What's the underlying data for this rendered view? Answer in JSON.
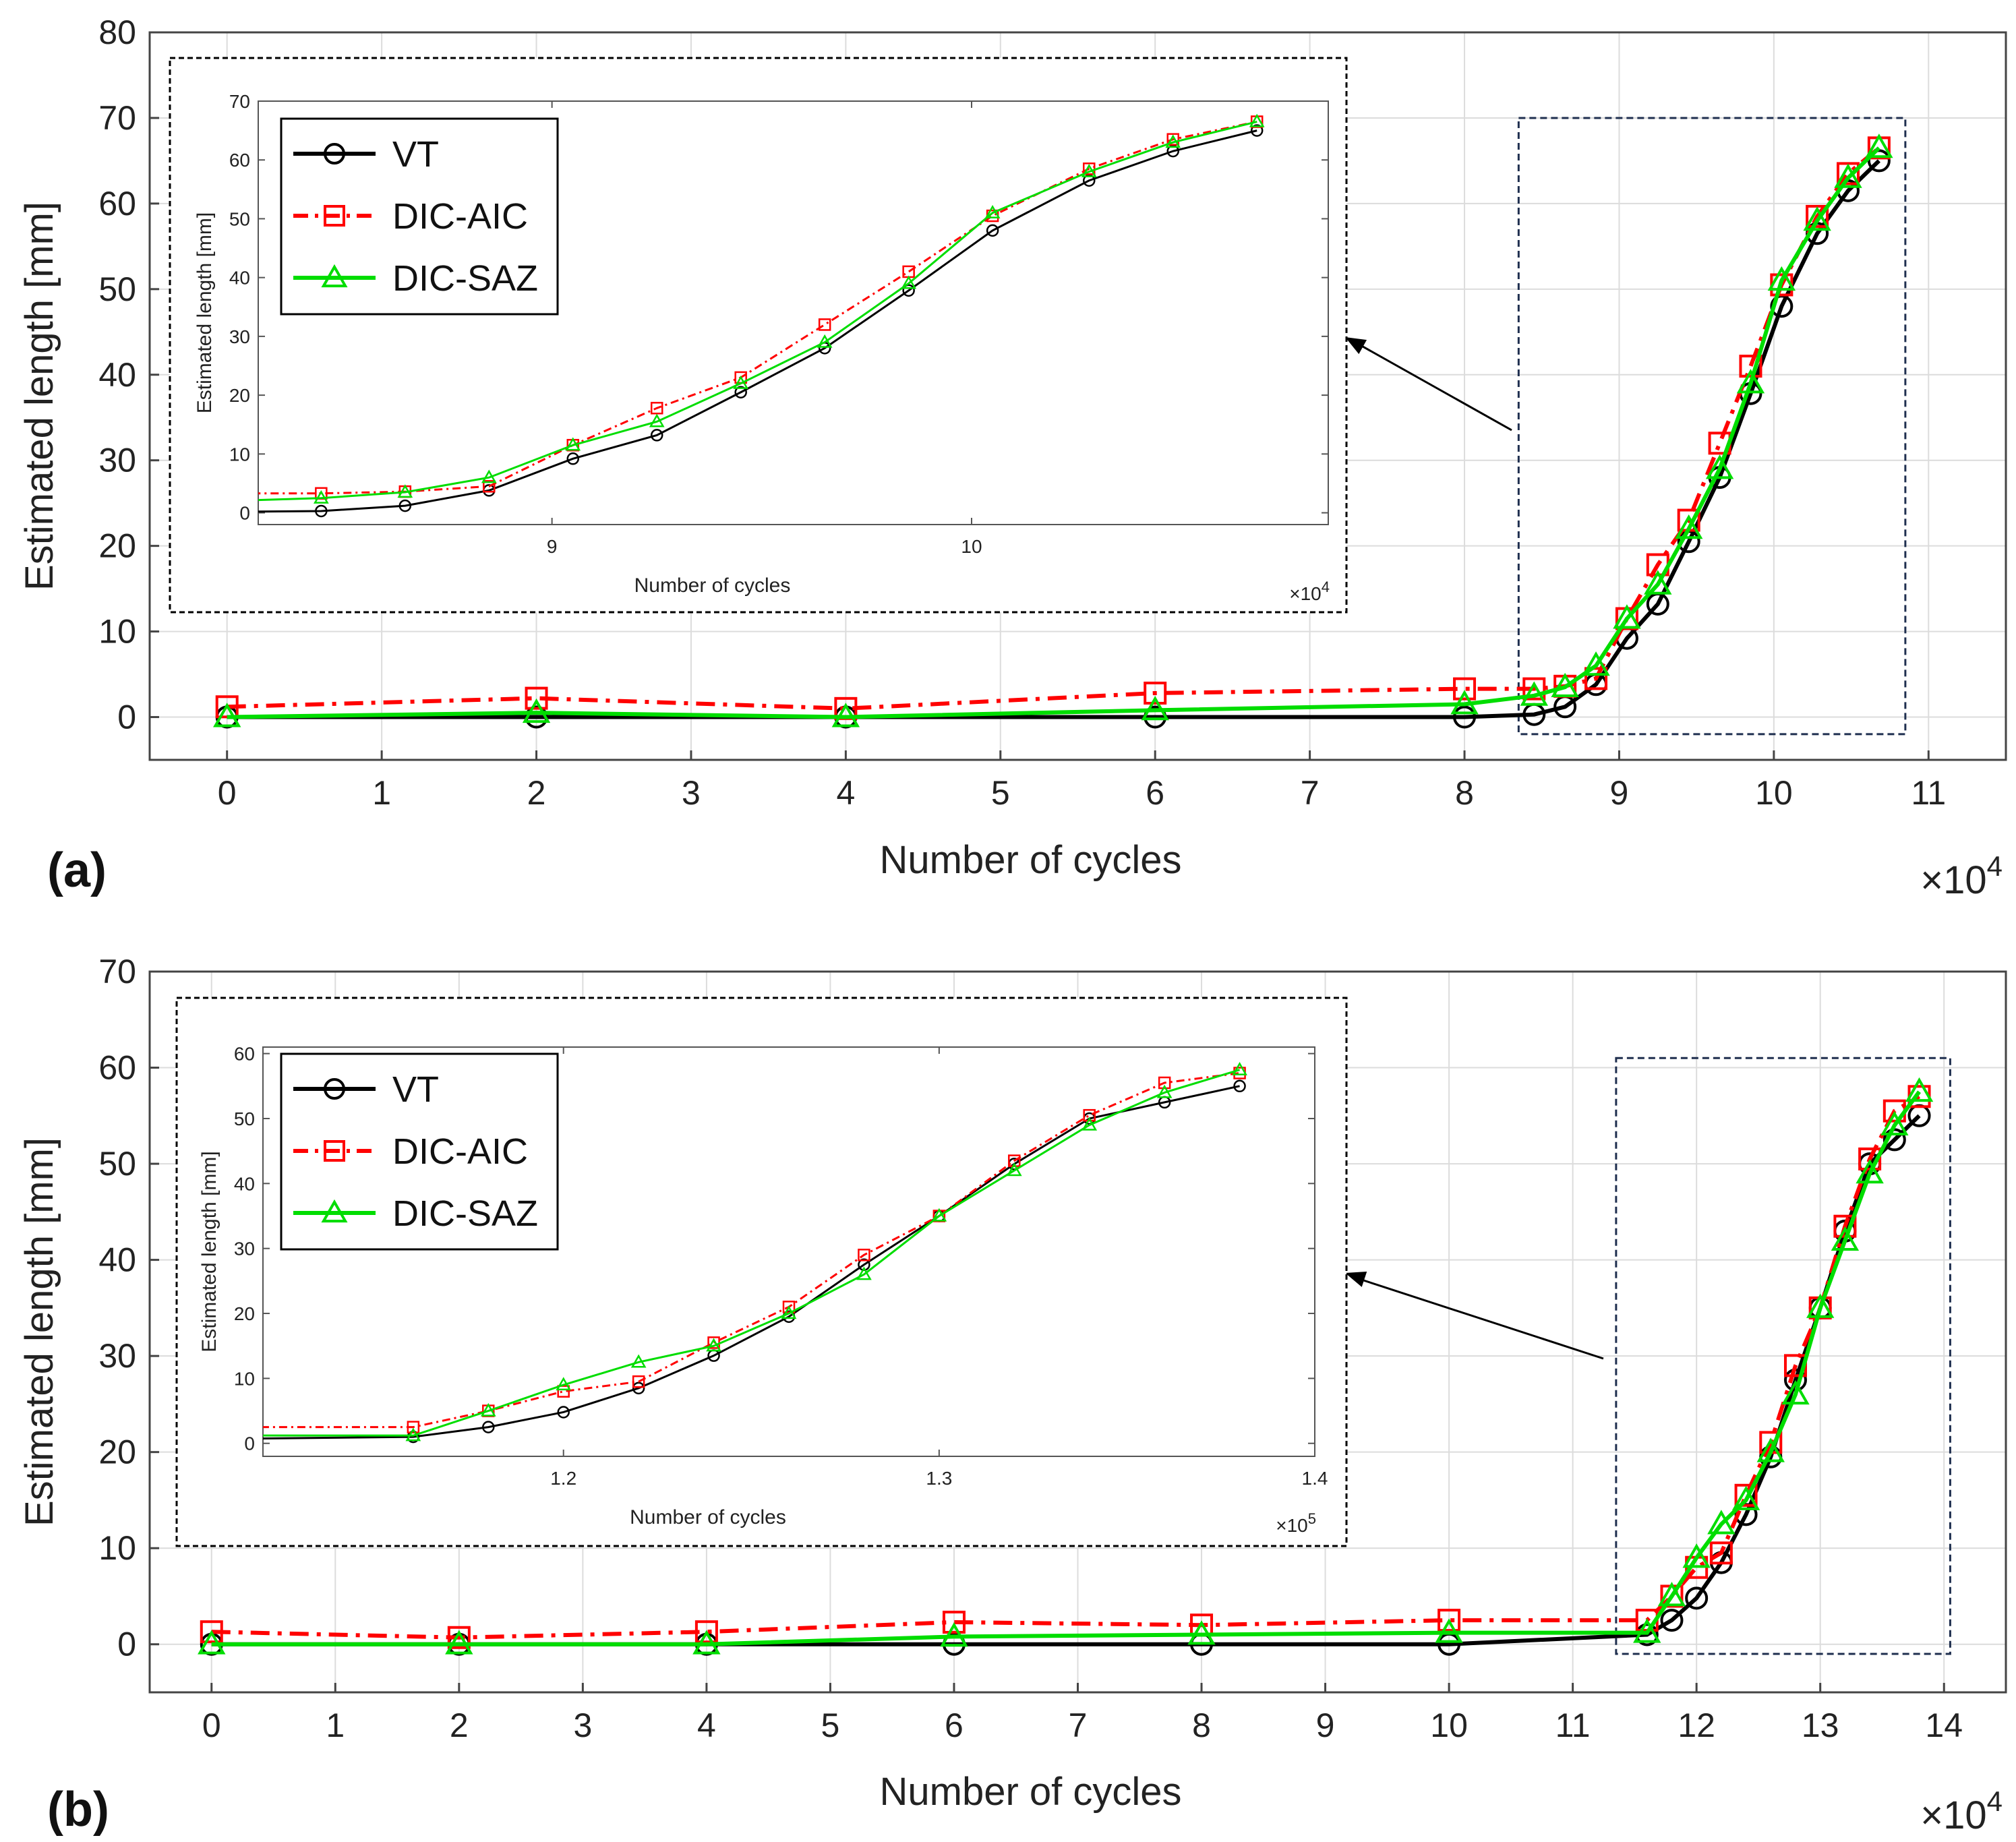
{
  "colors": {
    "VT": "#000000",
    "DIC-AIC": "#ff0000",
    "DIC-SAZ": "#00dd00",
    "grid": "#dcdcdc",
    "box": "#1f2f4f"
  },
  "chart_data": [
    {
      "panel": "(a)",
      "type": "line",
      "xlabel": "Number of cycles",
      "ylabel": "Estimated length [mm]",
      "x_multiplier": "×10",
      "x_multiplier_exp": "4",
      "xlim": [
        -0.5,
        11.5
      ],
      "ylim": [
        -5,
        80
      ],
      "xticks": [
        0,
        1,
        2,
        3,
        4,
        5,
        6,
        7,
        8,
        9,
        10,
        11
      ],
      "yticks": [
        0,
        10,
        20,
        30,
        40,
        50,
        60,
        70,
        80
      ],
      "series": [
        {
          "name": "VT",
          "marker": "circle",
          "dash": "solid",
          "x": [
            0,
            2,
            4,
            6,
            8,
            8.45,
            8.65,
            8.85,
            9.05,
            9.25,
            9.45,
            9.65,
            9.85,
            10.05,
            10.28,
            10.48,
            10.68
          ],
          "y": [
            0,
            0,
            0,
            0,
            0,
            0.3,
            1.2,
            3.8,
            9.2,
            13.2,
            20.5,
            28.0,
            37.8,
            48.0,
            56.5,
            61.5,
            65.0
          ]
        },
        {
          "name": "DIC-AIC",
          "marker": "square",
          "dash": "dashdot",
          "x": [
            0,
            2,
            4,
            6,
            8,
            8.45,
            8.65,
            8.85,
            9.05,
            9.25,
            9.45,
            9.65,
            9.85,
            10.05,
            10.28,
            10.48,
            10.68
          ],
          "y": [
            1.2,
            2.2,
            1.0,
            2.8,
            3.3,
            3.3,
            3.6,
            4.5,
            11.5,
            17.8,
            23.0,
            32.0,
            41.0,
            50.5,
            58.5,
            63.5,
            66.5
          ]
        },
        {
          "name": "DIC-SAZ",
          "marker": "triangle",
          "dash": "solid",
          "x": [
            0,
            2,
            4,
            6,
            8,
            8.45,
            8.65,
            8.85,
            9.05,
            9.25,
            9.45,
            9.65,
            9.85,
            10.05,
            10.28,
            10.48,
            10.68
          ],
          "y": [
            0,
            0.5,
            0,
            0.8,
            1.5,
            2.5,
            3.5,
            6.0,
            11.5,
            15.5,
            22.0,
            29.0,
            39.0,
            51.0,
            58.0,
            63.0,
            66.5
          ]
        }
      ],
      "zoom_box": {
        "x": [
          8.35,
          10.85
        ],
        "y": [
          -2,
          70
        ]
      },
      "inset": {
        "xlabel": "Number of cycles",
        "ylabel": "Estimated length [mm]",
        "x_multiplier": "×10",
        "x_multiplier_exp": "4",
        "xlim": [
          8.3,
          10.85
        ],
        "ylim": [
          -2,
          70
        ],
        "xticks": [
          9,
          10
        ],
        "yticks": [
          0,
          10,
          20,
          30,
          40,
          50,
          60,
          70
        ]
      }
    },
    {
      "panel": "(b)",
      "type": "line",
      "xlabel": "Number of cycles",
      "ylabel": "Estimated length [mm]",
      "x_multiplier": "×10",
      "x_multiplier_exp": "4",
      "xlim": [
        -0.5,
        14.5
      ],
      "ylim": [
        -5,
        70
      ],
      "xticks": [
        0,
        1,
        2,
        3,
        4,
        5,
        6,
        7,
        8,
        9,
        10,
        11,
        12,
        13,
        14
      ],
      "yticks": [
        0,
        10,
        20,
        30,
        40,
        50,
        60,
        70
      ],
      "series": [
        {
          "name": "VT",
          "marker": "circle",
          "dash": "solid",
          "x": [
            0,
            2,
            4,
            6,
            8,
            10,
            11.6,
            11.8,
            12.0,
            12.2,
            12.4,
            12.6,
            12.8,
            13.0,
            13.2,
            13.4,
            13.6,
            13.8
          ],
          "y": [
            0,
            0,
            0,
            0,
            0,
            0,
            1.0,
            2.5,
            4.8,
            8.5,
            13.5,
            19.5,
            27.5,
            35.0,
            43.0,
            50.0,
            52.5,
            55.0
          ]
        },
        {
          "name": "DIC-AIC",
          "marker": "square",
          "dash": "dashdot",
          "x": [
            0,
            2,
            4,
            6,
            8,
            10,
            11.6,
            11.8,
            12.0,
            12.2,
            12.4,
            12.6,
            12.8,
            13.0,
            13.2,
            13.4,
            13.6,
            13.8
          ],
          "y": [
            1.3,
            0.7,
            1.3,
            2.3,
            2.0,
            2.5,
            2.5,
            5.0,
            8.0,
            9.5,
            15.5,
            21.0,
            29.0,
            35.0,
            43.5,
            50.5,
            55.5,
            57.0
          ]
        },
        {
          "name": "DIC-SAZ",
          "marker": "triangle",
          "dash": "solid",
          "x": [
            0,
            2,
            4,
            6,
            8,
            10,
            11.6,
            11.8,
            12.0,
            12.2,
            12.4,
            12.6,
            12.8,
            13.0,
            13.2,
            13.4,
            13.6,
            13.8
          ],
          "y": [
            0,
            0,
            0,
            0.8,
            1.0,
            1.2,
            1.2,
            5.0,
            9.0,
            12.5,
            15.0,
            20.0,
            26.0,
            35.0,
            42.0,
            49.0,
            54.0,
            57.5
          ]
        }
      ],
      "zoom_box": {
        "x": [
          11.35,
          14.05
        ],
        "y": [
          -1,
          61
        ]
      },
      "inset": {
        "xlabel": "Number of cycles",
        "ylabel": "Estimated length [mm]",
        "x_multiplier": "×10",
        "x_multiplier_exp": "5",
        "xlim": [
          1.12,
          1.4
        ],
        "ylim": [
          -2,
          61
        ],
        "xticks": [
          1.2,
          1.3,
          1.4
        ],
        "yticks": [
          0,
          10,
          20,
          30,
          40,
          50,
          60
        ],
        "x_scale_from_main": 0.1
      }
    }
  ]
}
